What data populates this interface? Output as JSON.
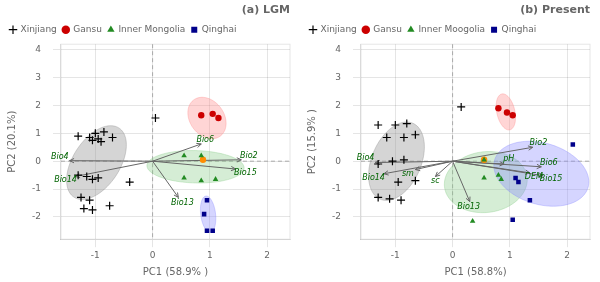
{
  "chart_data": [
    {
      "type": "scatter",
      "title": "(a) LGM",
      "xlabel": "PC1 (58.9% )",
      "ylabel": "PC2 (20.1%)",
      "xlim": [
        -1.6,
        2.4
      ],
      "ylim": [
        -2.8,
        4.2
      ],
      "xticks": [
        -1,
        0,
        1,
        2
      ],
      "yticks": [
        -2,
        -1,
        0,
        1,
        2,
        3,
        4
      ],
      "grid": true,
      "legend": "upper left",
      "series": [
        {
          "name": "Xinjiang",
          "color": "black",
          "marker": "plus",
          "values": [
            [
              -1.3,
              0.9
            ],
            [
              -1.1,
              0.85
            ],
            [
              -0.95,
              0.8
            ],
            [
              -1.05,
              0.75
            ],
            [
              -0.9,
              0.7
            ],
            [
              -1.0,
              1.0
            ],
            [
              -0.85,
              1.05
            ],
            [
              -0.7,
              0.85
            ],
            [
              -1.3,
              -0.5
            ],
            [
              -1.15,
              -0.55
            ],
            [
              -1.05,
              -0.65
            ],
            [
              -0.95,
              -0.6
            ],
            [
              -1.25,
              -1.3
            ],
            [
              -1.1,
              -1.4
            ],
            [
              -1.2,
              -1.7
            ],
            [
              -1.05,
              -1.75
            ],
            [
              -0.75,
              -1.6
            ],
            [
              0.05,
              1.55
            ],
            [
              -0.4,
              -0.75
            ]
          ]
        },
        {
          "name": "Gansu",
          "color": "#CC0000",
          "marker": "circle",
          "values": [
            [
              0.85,
              1.65
            ],
            [
              1.05,
              1.7
            ],
            [
              1.15,
              1.55
            ]
          ]
        },
        {
          "name": "Inner Mongolia",
          "color": "#228B22",
          "marker": "triangle",
          "values": [
            [
              0.55,
              0.2
            ],
            [
              0.85,
              0.2
            ],
            [
              0.55,
              -0.6
            ],
            [
              0.85,
              -0.7
            ],
            [
              1.1,
              -0.65
            ]
          ]
        },
        {
          "name": "Qinghai",
          "color": "#00008B",
          "marker": "square",
          "values": [
            [
              0.95,
              -1.4
            ],
            [
              0.9,
              -1.9
            ],
            [
              0.95,
              -2.5
            ],
            [
              1.05,
              -2.5
            ]
          ]
        }
      ],
      "center_dot": {
        "color": "#FF8C00",
        "marker": "circle",
        "values": [
          0.88,
          0.05
        ]
      },
      "arrows": {
        "color": "#006400",
        "items": [
          {
            "end": [
              -1.45,
              0.02
            ],
            "label": "Bio4",
            "label_x": -1.62,
            "label_y": 0.15
          },
          {
            "end": [
              -1.35,
              -0.55
            ],
            "label": "Bio14",
            "label_x": -1.52,
            "label_y": -0.68
          },
          {
            "end": [
              1.55,
              0.05
            ],
            "label": "Bio2",
            "label_x": 1.68,
            "label_y": 0.18
          },
          {
            "end": [
              1.45,
              -0.28
            ],
            "label": "Bio15",
            "label_x": 1.62,
            "label_y": -0.42
          },
          {
            "end": [
              0.85,
              0.62
            ],
            "label": "Bio6",
            "label_x": 0.92,
            "label_y": 0.78
          },
          {
            "end": [
              0.45,
              -1.3
            ],
            "label": "Bio13",
            "label_x": 0.52,
            "label_y": -1.5
          }
        ]
      },
      "ellipses": [
        {
          "cx": -0.98,
          "cy": -0.05,
          "rx": 0.45,
          "ry": 1.35,
          "angle": -12,
          "color": "#888888"
        },
        {
          "cx": 0.95,
          "cy": 1.55,
          "rx": 0.32,
          "ry": 0.75,
          "angle": 8,
          "color": "#FF8888"
        },
        {
          "cx": 0.75,
          "cy": -0.2,
          "rx": 0.85,
          "ry": 0.58,
          "angle": -5,
          "color": "#88CC88"
        },
        {
          "cx": 0.97,
          "cy": -1.9,
          "rx": 0.13,
          "ry": 0.65,
          "angle": 3,
          "color": "#8888FF"
        }
      ]
    },
    {
      "type": "scatter",
      "title": "(b) Present",
      "xlabel": "PC1 (58.8%)",
      "ylabel": "PC2 (15.9% )",
      "xlim": [
        -1.6,
        2.4
      ],
      "ylim": [
        -2.8,
        4.2
      ],
      "xticks": [
        -1,
        0,
        1,
        2
      ],
      "yticks": [
        -2,
        -1,
        0,
        1,
        2,
        3,
        4
      ],
      "grid": true,
      "legend": "upper left",
      "series": [
        {
          "name": "Xinjiang",
          "color": "black",
          "marker": "plus",
          "values": [
            [
              -1.3,
              1.3
            ],
            [
              -1.0,
              1.3
            ],
            [
              -0.8,
              1.35
            ],
            [
              -1.15,
              0.85
            ],
            [
              -0.85,
              0.85
            ],
            [
              -0.65,
              0.95
            ],
            [
              -1.3,
              -0.1
            ],
            [
              -1.05,
              -0.0
            ],
            [
              -0.85,
              0.05
            ],
            [
              -0.95,
              -0.75
            ],
            [
              -0.65,
              -0.7
            ],
            [
              -1.3,
              -1.3
            ],
            [
              -1.1,
              -1.35
            ],
            [
              -0.9,
              -1.4
            ],
            [
              0.15,
              1.95
            ]
          ]
        },
        {
          "name": "Gansu",
          "color": "#CC0000",
          "marker": "circle",
          "values": [
            [
              0.8,
              1.9
            ],
            [
              0.95,
              1.75
            ],
            [
              1.05,
              1.65
            ]
          ]
        },
        {
          "name": "Inner Moogolia",
          "color": "#228B22",
          "marker": "triangle",
          "values": [
            [
              0.55,
              0.05
            ],
            [
              0.8,
              -0.5
            ],
            [
              0.55,
              -0.6
            ],
            [
              0.85,
              -0.65
            ],
            [
              0.35,
              -2.15
            ]
          ]
        },
        {
          "name": "Qinghai",
          "color": "#00008B",
          "marker": "square",
          "values": [
            [
              2.1,
              0.6
            ],
            [
              1.1,
              -0.6
            ],
            [
              1.15,
              -0.75
            ],
            [
              1.05,
              -2.1
            ],
            [
              1.35,
              -1.4
            ]
          ]
        }
      ],
      "center_dot": {
        "color": "#FF8C00",
        "marker": "circle",
        "values": [
          0.55,
          0.05
        ]
      },
      "arrows": {
        "color": "#006400",
        "items": [
          {
            "end": [
              -1.35,
              -0.05
            ],
            "label": "Bio4",
            "label_x": -1.52,
            "label_y": 0.13
          },
          {
            "end": [
              -1.2,
              -0.45
            ],
            "label": "Bio14",
            "label_x": -1.38,
            "label_y": -0.6
          },
          {
            "end": [
              -0.65,
              -0.3
            ],
            "label": "sm",
            "label_x": -0.78,
            "label_y": -0.45
          },
          {
            "end": [
              -0.3,
              -0.55
            ],
            "label": "sc",
            "label_x": -0.3,
            "label_y": -0.72
          },
          {
            "end": [
              1.4,
              0.5
            ],
            "label": "Bio2",
            "label_x": 1.5,
            "label_y": 0.65
          },
          {
            "end": [
              0.9,
              -0.1
            ],
            "label": "pH",
            "label_x": 0.98,
            "label_y": 0.08
          },
          {
            "end": [
              1.55,
              -0.2
            ],
            "label": "Bio6",
            "label_x": 1.68,
            "label_y": -0.05
          },
          {
            "end": [
              1.35,
              -0.42
            ],
            "label": "DEM",
            "label_x": 1.42,
            "label_y": -0.58
          },
          {
            "end": [
              1.58,
              -0.52
            ],
            "label": "Bio15",
            "label_x": 1.72,
            "label_y": -0.65
          },
          {
            "end": [
              0.3,
              -1.45
            ],
            "label": "Bio13",
            "label_x": 0.28,
            "label_y": -1.65
          }
        ]
      },
      "ellipses": [
        {
          "cx": -0.98,
          "cy": 0.0,
          "rx": 0.45,
          "ry": 1.42,
          "angle": -8,
          "color": "#888888"
        },
        {
          "cx": 0.93,
          "cy": 1.77,
          "rx": 0.16,
          "ry": 0.65,
          "angle": 5,
          "color": "#FF8888"
        },
        {
          "cx": 0.58,
          "cy": -0.75,
          "rx": 0.72,
          "ry": 1.1,
          "angle": -5,
          "color": "#88CC88"
        },
        {
          "cx": 1.55,
          "cy": -0.45,
          "rx": 0.78,
          "ry": 1.2,
          "angle": 18,
          "color": "#8888FF"
        }
      ]
    }
  ]
}
